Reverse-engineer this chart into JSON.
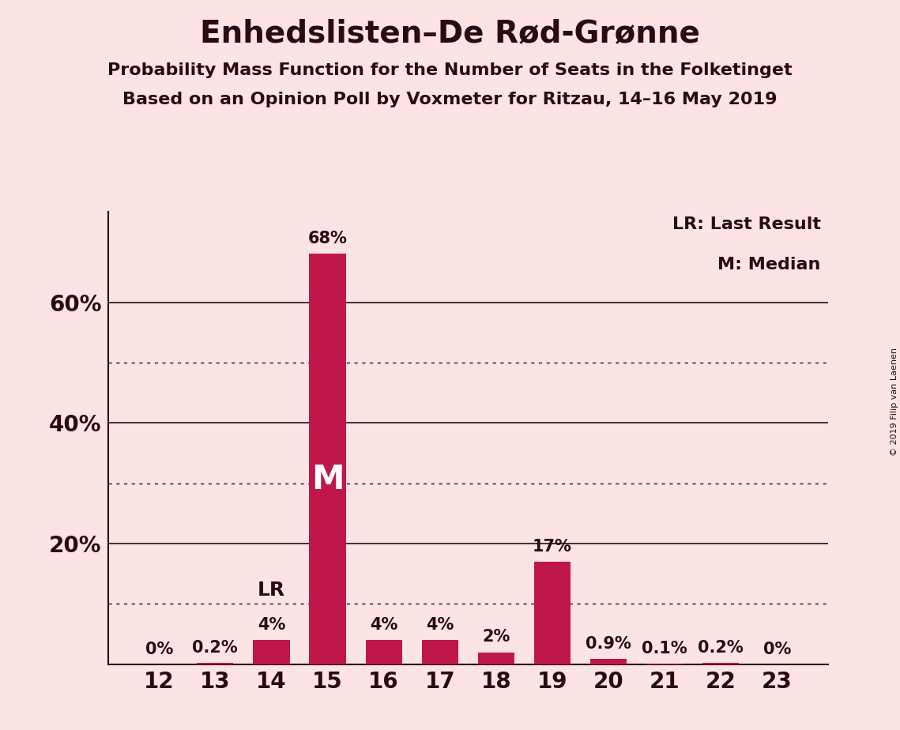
{
  "title": "Enhedslisten–De Rød-Grønne",
  "subtitle1": "Probability Mass Function for the Number of Seats in the Folketinget",
  "subtitle2": "Based on an Opinion Poll by Voxmeter for Ritzau, 14–16 May 2019",
  "categories": [
    12,
    13,
    14,
    15,
    16,
    17,
    18,
    19,
    20,
    21,
    22,
    23
  ],
  "values": [
    0.0,
    0.2,
    4.0,
    68.0,
    4.0,
    4.0,
    2.0,
    17.0,
    0.9,
    0.1,
    0.2,
    0.0
  ],
  "bar_color": "#c0174a",
  "background_color": "#fce4e4",
  "text_color": "#2a0a14",
  "lr_bar": 14,
  "median_bar": 15,
  "bar_labels": [
    "0%",
    "0.2%",
    "4%",
    "68%",
    "4%",
    "4%",
    "2%",
    "17%",
    "0.9%",
    "0.1%",
    "0.2%",
    "0%"
  ],
  "ylim": [
    0,
    75
  ],
  "yticks": [
    20,
    40,
    60
  ],
  "ytick_labels": [
    "20%",
    "40%",
    "60%"
  ],
  "dotted_lines": [
    10,
    30,
    50
  ],
  "copyright_text": "© 2019 Filip van Laenen",
  "legend_line1": "LR: Last Result",
  "legend_line2": "M: Median"
}
